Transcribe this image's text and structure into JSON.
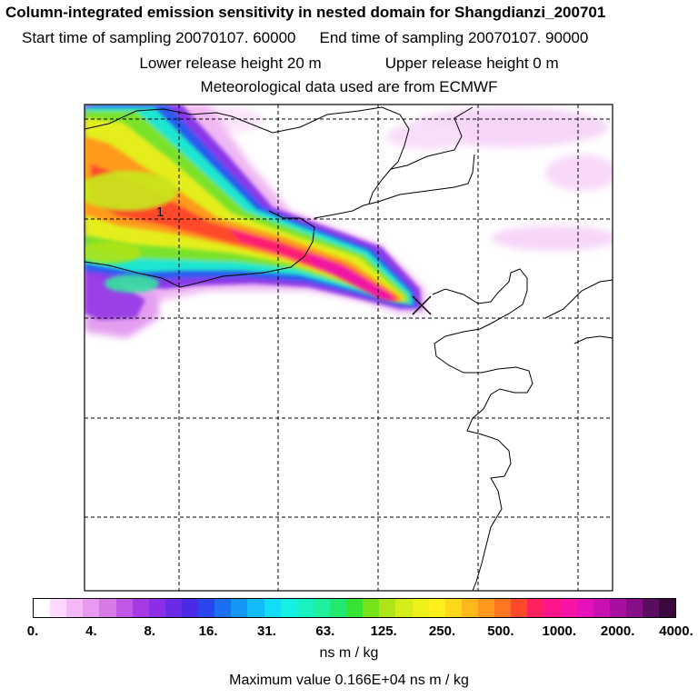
{
  "header": {
    "title": "Column-integrated emission sensitivity in nested domain for Shangdianzi_200701",
    "start_time": "Start time of sampling 20070107. 60000",
    "end_time": "End time of sampling 20070107. 90000",
    "lower_release": "Lower release height   20 m",
    "upper_release": "Upper release height    0 m",
    "met_source": "Meteorological data used are from ECMWF"
  },
  "map": {
    "contour_label": "1",
    "receptor_marker": "receptor-cross"
  },
  "colorbar": {
    "colors": [
      "#ffffff",
      "#ffd8ff",
      "#f5b8f7",
      "#e79af0",
      "#d77ae8",
      "#c158e6",
      "#a63be4",
      "#8a2fe6",
      "#6a2ae6",
      "#4a2ae6",
      "#2b45ef",
      "#1c6ff3",
      "#1497f7",
      "#12bcf9",
      "#13dcf6",
      "#16f0e3",
      "#18f2c0",
      "#1ef09e",
      "#22e870",
      "#36e232",
      "#76e21a",
      "#aee418",
      "#d4ec18",
      "#eef01a",
      "#fff01c",
      "#ffd81c",
      "#ffb81c",
      "#ff981c",
      "#ff7622",
      "#ff4a2a",
      "#ff2060",
      "#ff148a",
      "#f914a8",
      "#e412b8",
      "#c812b0",
      "#a610a0",
      "#860e86",
      "#5a0c5e",
      "#3a0a3e"
    ],
    "tick_labels": [
      "0.",
      "4.",
      "8.",
      "16.",
      "31.",
      "63.",
      "125.",
      "250.",
      "500.",
      "1000.",
      "2000.",
      "4000."
    ],
    "units": "ns m / kg"
  },
  "footer": {
    "max_value": "Maximum value  0.166E+04 ns m / kg"
  }
}
